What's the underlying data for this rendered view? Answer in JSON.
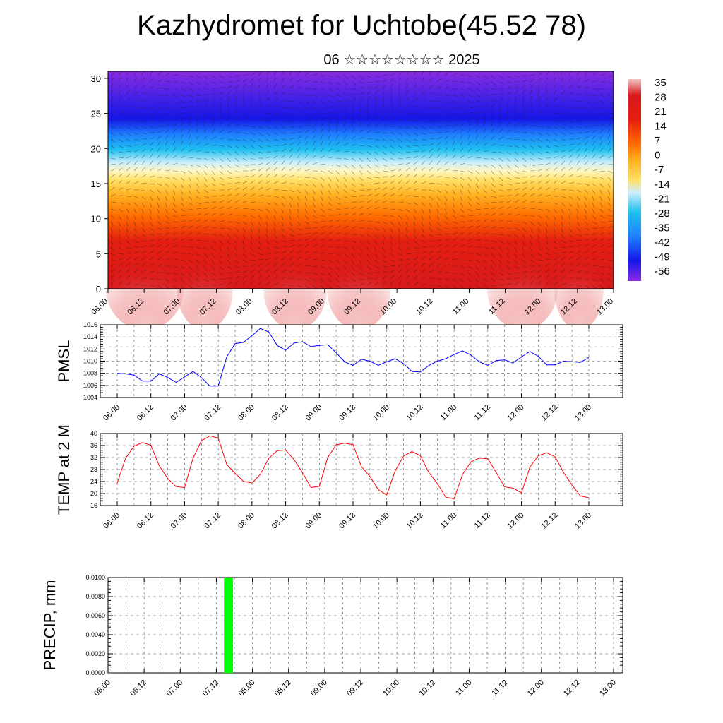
{
  "header": {
    "title": "Kazhydromet for Uchtobe(45.52 78)",
    "subtitle": "06 ☆☆☆☆☆☆☆☆ 2025"
  },
  "time_labels": [
    "06.00",
    "06.12",
    "07.00",
    "07.12",
    "08.00",
    "08.12",
    "09.00",
    "09.12",
    "10.00",
    "10.12",
    "11.00",
    "11.12",
    "12.00",
    "12.12",
    "13.00"
  ],
  "chart_data": [
    {
      "type": "heatmap",
      "yticks": [
        "0",
        "5",
        "10",
        "15",
        "20",
        "25",
        "30"
      ],
      "ylim": [
        0,
        31
      ],
      "colorbar_labels": [
        "35",
        "28",
        "21",
        "14",
        "7",
        "0",
        "-7",
        "-14",
        "-21",
        "-28",
        "-35",
        "-42",
        "-49",
        "-56"
      ],
      "colors": [
        "#f3c6c6",
        "#d8191c",
        "#ff6a00",
        "#ffd23a",
        "#fff4b8",
        "#bfe8f5",
        "#1ec0f0",
        "#1e7fff",
        "#1616e6",
        "#8a2be2"
      ]
    },
    {
      "type": "line",
      "ylabel": "PMSL",
      "yticks": [
        "1004",
        "1006",
        "1008",
        "1010",
        "1012",
        "1014",
        "1016"
      ],
      "ylim": [
        1004,
        1016
      ],
      "color": "#0000ff",
      "values": [
        1008.0,
        1007.9,
        1007.7,
        1006.7,
        1006.7,
        1007.9,
        1007.3,
        1006.5,
        1007.4,
        1008.3,
        1007.3,
        1005.9,
        1005.9,
        1010.7,
        1012.9,
        1013.1,
        1014.2,
        1015.4,
        1014.8,
        1012.6,
        1011.8,
        1013.0,
        1013.2,
        1012.4,
        1012.6,
        1012.7,
        1011.4,
        1009.9,
        1009.3,
        1010.3,
        1010.0,
        1009.3,
        1009.9,
        1010.4,
        1009.6,
        1008.3,
        1008.2,
        1009.3,
        1010.0,
        1010.4,
        1011.1,
        1011.7,
        1011.0,
        1009.9,
        1009.3,
        1010.1,
        1010.2,
        1009.7,
        1010.7,
        1011.6,
        1010.8,
        1009.4,
        1009.4,
        1010.0,
        1009.9,
        1009.8,
        1010.6
      ]
    },
    {
      "type": "line",
      "ylabel": "TEMP at 2 M",
      "yticks": [
        "16",
        "20",
        "24",
        "28",
        "32",
        "36",
        "40"
      ],
      "ylim": [
        16,
        40
      ],
      "color": "#ff0000",
      "values": [
        23.5,
        31.8,
        35.8,
        37.0,
        36.1,
        29.2,
        25.0,
        22.3,
        22.0,
        31.8,
        37.6,
        39.2,
        38.5,
        29.7,
        26.7,
        24.1,
        23.5,
        26.4,
        31.8,
        34.3,
        34.5,
        31.3,
        27.0,
        22.0,
        22.4,
        32.0,
        36.2,
        36.8,
        36.3,
        29.0,
        25.7,
        21.3,
        19.5,
        27.5,
        32.5,
        34.0,
        32.6,
        27.0,
        23.4,
        18.8,
        18.2,
        26.4,
        30.6,
        31.8,
        31.6,
        27.0,
        22.2,
        21.8,
        20.2,
        28.8,
        32.6,
        33.6,
        32.2,
        27.0,
        22.8,
        19.2,
        18.6
      ]
    },
    {
      "type": "bar",
      "ylabel": "PRECIP, mm",
      "yticks": [
        "0.0000",
        "0.0020",
        "0.0040",
        "0.0060",
        "0.0080",
        "0.0100"
      ],
      "ylim": [
        0,
        0.01
      ],
      "color": "#00ff00",
      "x_index": 13,
      "value": 0.01
    }
  ]
}
